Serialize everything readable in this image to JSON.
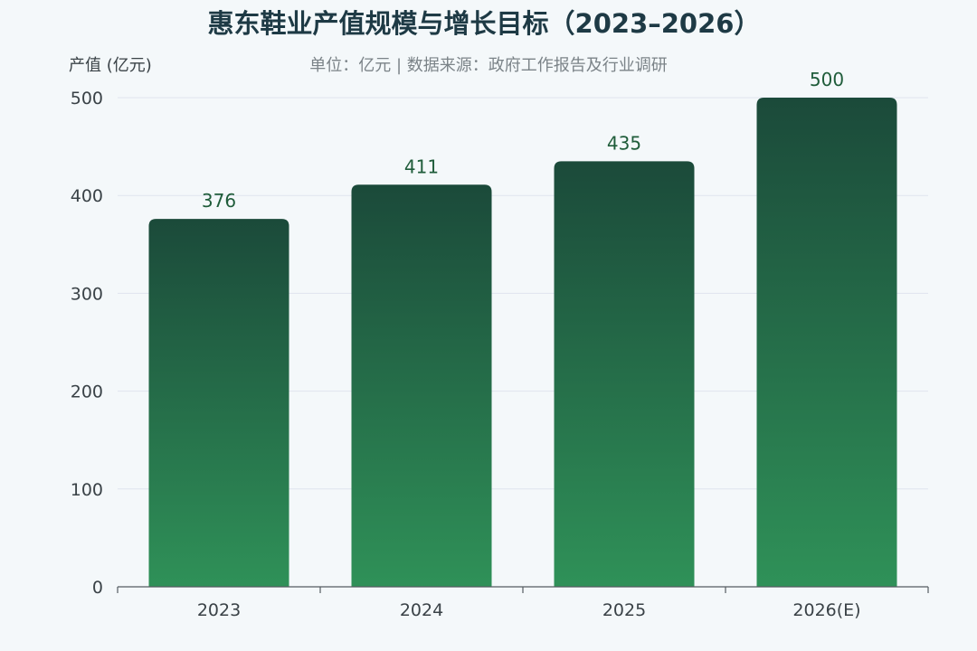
{
  "chart_data": {
    "type": "bar",
    "title": "惠东鞋业产值规模与增长目标（2023–2026）",
    "subtitle": "单位：亿元 | 数据来源：政府工作报告及行业调研",
    "ylabel": "产值 (亿元)",
    "xlabel": "",
    "categories": [
      "2023",
      "2024",
      "2025",
      "2026(E)"
    ],
    "values": [
      376,
      411,
      435,
      500
    ],
    "ylim": [
      0,
      500
    ],
    "yticks": [
      0,
      100,
      200,
      300,
      400,
      500
    ],
    "grid": true,
    "colors": {
      "bar_top": "#1b4a3a",
      "bar_bottom": "#2f9158",
      "label": "#1f5c3a"
    }
  }
}
